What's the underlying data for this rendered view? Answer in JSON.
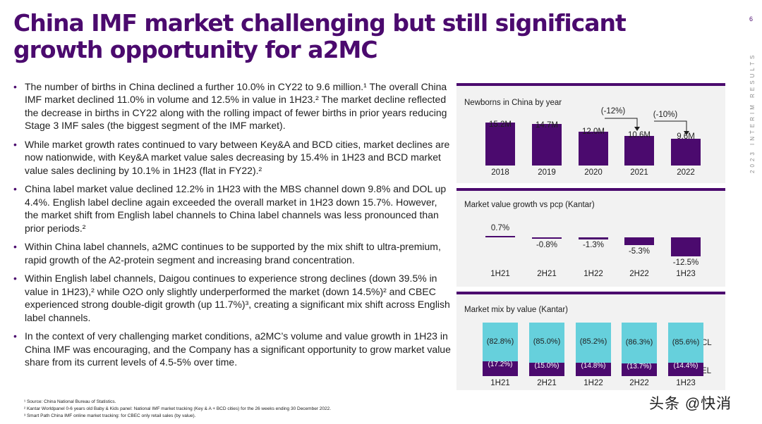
{
  "header": {
    "title": "China IMF market challenging but still significant growth opportunity for a2MC",
    "page_number": "6",
    "side_label": "2023 INTERIM RESULTS"
  },
  "bullets": [
    {
      "text": "The number of births in China declined a further 10.0% in CY22 to 9.6 million.¹ The overall China IMF market declined 11.0% in volume and 12.5% in value in 1H23.² The market decline reflected the decrease in births in CY22 along with the rolling impact of fewer births in prior years reducing Stage 3 IMF sales (the biggest segment of the IMF market)."
    },
    {
      "text": "While market growth rates continued to vary between Key&A and BCD cities, market declines are now nationwide, with Key&A market value sales decreasing by 15.4% in 1H23 and BCD market value sales declining by 10.1% in 1H23 (flat in FY22).²"
    },
    {
      "text": "China label market value declined 12.2% in 1H23 with the MBS channel down 9.8% and DOL up 4.4%. English label decline again exceeded the overall market in 1H23 down 15.7%. However, the market shift from English label channels to China label channels was less pronounced than prior periods.²"
    },
    {
      "text": "Within China label channels, a2MC continues to be supported by the mix shift to ultra-premium, rapid growth of the A2-protein segment and increasing brand concentration."
    },
    {
      "text": "Within English label channels, Daigou continues to experience strong declines (down 39.5% in value in 1H23),² while O2O only slightly underperformed the market (down 14.5%)² and CBEC experienced strong double-digit growth (up 11.7%)³, creating a significant mix shift across English label channels."
    },
    {
      "text": "In the context of very challenging market conditions, a2MC’s volume and value growth in 1H23 in China IMF was encouraging, and the Company has a significant opportunity to grow market value share from its current levels of 4.5-5% over time."
    }
  ],
  "footnotes": [
    "¹ Source: China National Bureau of Statistics.",
    "² Kantar Worldpanel 0-6 years old Baby & Kids panel: National IMF market tracking (Key & A + BCD cities) for the 26 weeks ending 30 December 2022.",
    "³ Smart Path China IMF online market tracking: for CBEC only retail sales (by value)."
  ],
  "watermark": "头条 @快消",
  "colors": {
    "brand_purple": "#4b0a6e",
    "mix_cyan": "#66d0dc",
    "panel_bg": "#f2f2f2"
  },
  "chart_data": [
    {
      "type": "bar",
      "title": "Newborns in China by year",
      "categories": [
        "2018",
        "2019",
        "2020",
        "2021",
        "2022"
      ],
      "values": [
        15.2,
        14.7,
        12.0,
        10.6,
        9.6
      ],
      "value_labels": [
        "15.2M",
        "14.7M",
        "12.0M",
        "10.6M",
        "9.6M"
      ],
      "annotations": [
        "(-12%)",
        "(-10%)"
      ],
      "ylim": [
        0,
        16
      ]
    },
    {
      "type": "bar",
      "title": "Market value growth vs pcp (Kantar)",
      "categories": [
        "1H21",
        "2H21",
        "1H22",
        "2H22",
        "1H23"
      ],
      "values": [
        0.7,
        -0.8,
        -1.3,
        -5.3,
        -12.5
      ],
      "value_labels": [
        "0.7%",
        "-0.8%",
        "-1.3%",
        "-5.3%",
        "-12.5%"
      ]
    },
    {
      "type": "bar",
      "stacked": true,
      "title": "Market mix by value (Kantar)",
      "categories": [
        "1H21",
        "2H21",
        "1H22",
        "2H22",
        "1H23"
      ],
      "series": [
        {
          "name": "EL",
          "values": [
            17.2,
            15.0,
            14.8,
            13.7,
            14.4
          ],
          "labels": [
            "(17.2%)",
            "(15.0%)",
            "(14.8%)",
            "(13.7%)",
            "(14.4%)"
          ]
        },
        {
          "name": "CL",
          "values": [
            82.8,
            85.0,
            85.2,
            86.3,
            85.6
          ],
          "labels": [
            "(82.8%)",
            "(85.0%)",
            "(85.2%)",
            "(86.3%)",
            "(85.6%)"
          ]
        }
      ],
      "ylim": [
        0,
        100
      ]
    }
  ]
}
